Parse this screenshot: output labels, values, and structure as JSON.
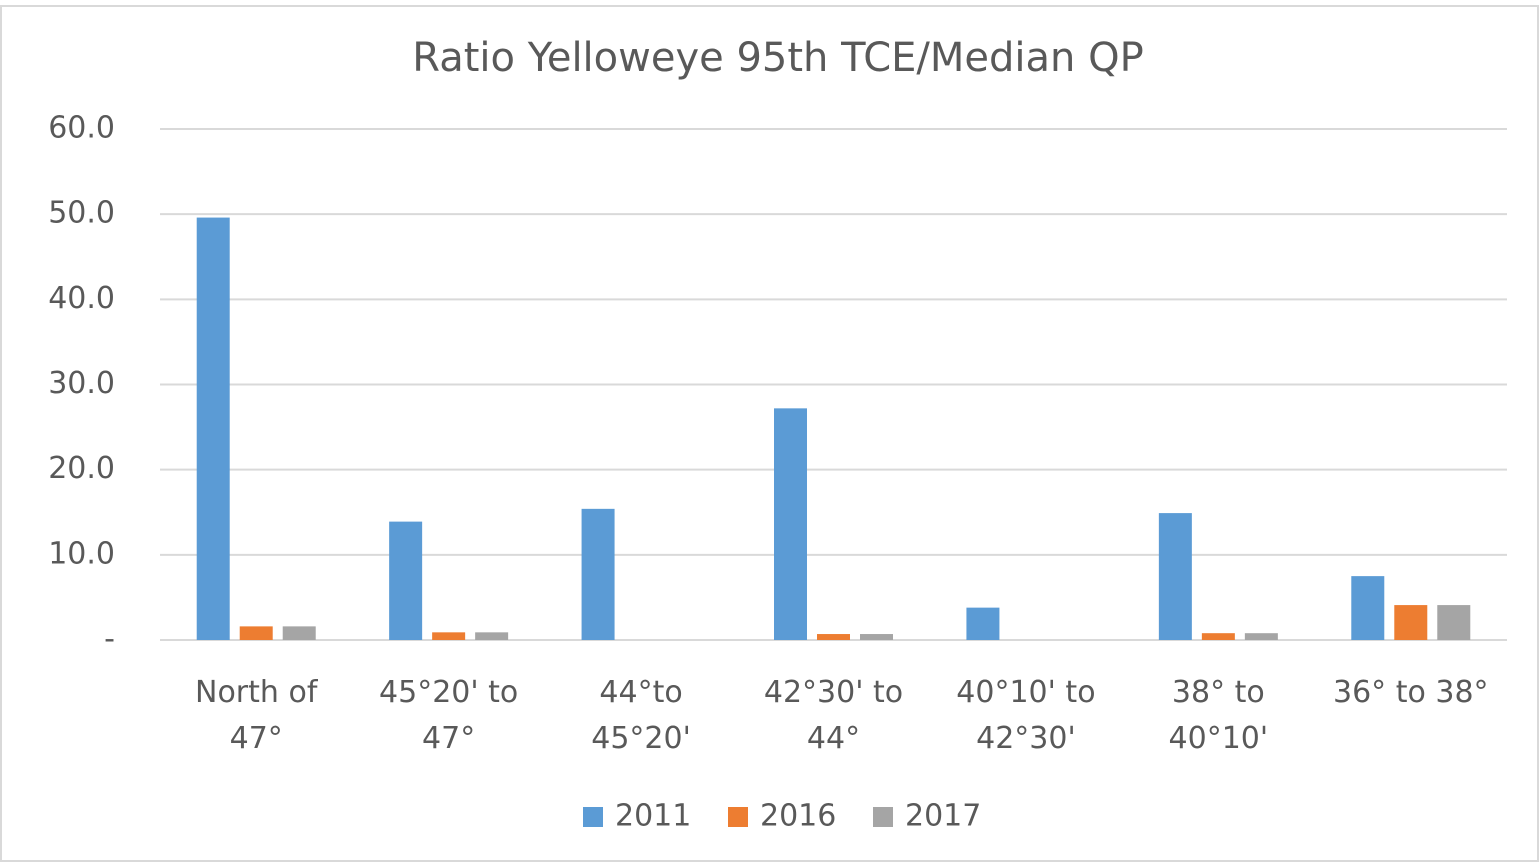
{
  "chart_data": {
    "type": "bar",
    "title": "Ratio Yelloweye 95th TCE/Median QP",
    "categories": [
      "North of 47°",
      "45°20' to 47°",
      "44°to 45°20'",
      "42°30' to 44°",
      "40°10' to 42°30'",
      "38° to 40°10'",
      "36° to 38°"
    ],
    "series": [
      {
        "name": "2011",
        "color": "#5b9bd5",
        "values": [
          49.6,
          13.9,
          15.4,
          27.2,
          3.8,
          14.9,
          7.5
        ]
      },
      {
        "name": "2016",
        "color": "#ed7d31",
        "values": [
          1.6,
          0.9,
          0,
          0.7,
          0,
          0.8,
          4.1
        ]
      },
      {
        "name": "2017",
        "color": "#a5a5a5",
        "values": [
          1.6,
          0.9,
          0,
          0.7,
          0,
          0.8,
          4.1
        ]
      }
    ],
    "ylim": [
      0,
      60
    ],
    "yticks": [
      {
        "value": 0,
        "label": "-"
      },
      {
        "value": 10,
        "label": "10.0"
      },
      {
        "value": 20,
        "label": "20.0"
      },
      {
        "value": 30,
        "label": "30.0"
      },
      {
        "value": 40,
        "label": "40.0"
      },
      {
        "value": 50,
        "label": "50.0"
      },
      {
        "value": 60,
        "label": "60.0"
      }
    ],
    "grid": true,
    "legend": "bottom"
  }
}
